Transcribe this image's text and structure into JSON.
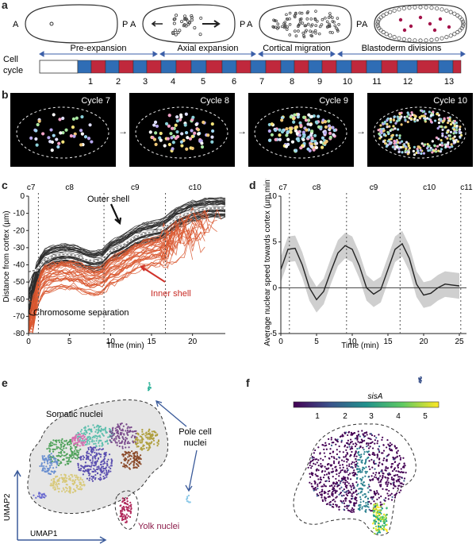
{
  "figure": {
    "panels": {
      "a": "a",
      "b": "b",
      "c": "c",
      "d": "d",
      "e": "e",
      "f": "f"
    }
  },
  "panel_a": {
    "embryo_labels": {
      "anterior": "A",
      "posterior": "P"
    },
    "cell_cycle_label_1": "Cell",
    "cell_cycle_label_2": "cycle",
    "phases": [
      "Pre-expansion",
      "Axial expansion",
      "Cortical migration",
      "Blastoderm divisions"
    ],
    "cycle_numbers": [
      "1",
      "2",
      "3",
      "4",
      "5",
      "6",
      "7",
      "8",
      "9",
      "10",
      "11",
      "12",
      "13"
    ],
    "colors": {
      "blue": "#2f6db5",
      "red": "#c0283c",
      "nucleus_red": "#a3134a"
    }
  },
  "panel_b": {
    "titles": [
      "Cycle 7",
      "Cycle 8",
      "Cycle 9",
      "Cycle 10"
    ]
  },
  "panel_c": {
    "chart_data": {
      "type": "line",
      "ylabel": "Distance from cortex (µm)",
      "xlabel": "Time (min)",
      "xlim": [
        0,
        24
      ],
      "ylim": [
        -80,
        0
      ],
      "xticks": [
        "0",
        "5",
        "10",
        "15",
        "20"
      ],
      "yticks": [
        "0",
        "-10",
        "-20",
        "-30",
        "-40",
        "-50",
        "-60",
        "-70",
        "-80"
      ],
      "cycle_labels": [
        "c7",
        "c8",
        "c9",
        "c10"
      ],
      "cycle_boundaries": [
        1.2,
        9.2,
        16.7
      ],
      "annotations": {
        "outer": "Outer shell",
        "inner": "Inner shell",
        "chromosome": "Chromosome separation"
      },
      "outer_mean": {
        "x": [
          0,
          1,
          2,
          3,
          4,
          5,
          6,
          7,
          8,
          9,
          10,
          11,
          12,
          13,
          14,
          15,
          16,
          17,
          18,
          19,
          20,
          21,
          22,
          23,
          24
        ],
        "y": [
          -44,
          -43,
          -37,
          -35,
          -34,
          -34,
          -35,
          -37,
          -38,
          -37,
          -32,
          -30,
          -27,
          -24,
          -22,
          -21,
          -20,
          -17,
          -13,
          -11,
          -9,
          -8,
          -7,
          -7,
          -7
        ]
      },
      "colors": {
        "outer": "#2b2b2b",
        "inner": "#d9572f",
        "mean": "#c8c8c8"
      }
    }
  },
  "panel_d": {
    "chart_data": {
      "type": "line",
      "ylabel": "Average nuclear speed towards cortex (µm min⁻¹)",
      "xlabel": "Time (min)",
      "xlim": [
        0,
        26
      ],
      "ylim": [
        -5,
        10
      ],
      "xticks": [
        "0",
        "5",
        "10",
        "15",
        "20",
        "25"
      ],
      "yticks": [
        "10",
        "5",
        "0",
        "-5"
      ],
      "cycle_labels": [
        "c7",
        "c8",
        "c9",
        "c10",
        "c11"
      ],
      "cycle_boundaries": [
        1.2,
        9.2,
        16.7,
        25.2
      ],
      "x": [
        0,
        1,
        2,
        3,
        4,
        5,
        6,
        7,
        8,
        9,
        10,
        11,
        12,
        13,
        14,
        15,
        16,
        17,
        18,
        19,
        20,
        21,
        22,
        23,
        24,
        25
      ],
      "y": [
        2,
        4.2,
        4.3,
        2.5,
        0,
        -1.3,
        -0.4,
        1.8,
        3.8,
        4.6,
        4.2,
        2.4,
        0,
        -0.7,
        -0.2,
        2,
        4.2,
        4.8,
        3.2,
        0.4,
        -0.8,
        -0.6,
        0,
        0.4,
        0.3,
        0.2
      ],
      "band": 1.4
    }
  },
  "panel_e": {
    "labels": {
      "somatic": "Somatic nuclei",
      "pole_1": "Pole cell",
      "pole_2": "nuclei",
      "yolk": "Yolk nuclei",
      "umap1": "UMAP1",
      "umap2": "UMAP2"
    }
  },
  "panel_f": {
    "gene": "sisA",
    "colorbar_ticks": [
      "1",
      "2",
      "3",
      "4",
      "5"
    ]
  }
}
